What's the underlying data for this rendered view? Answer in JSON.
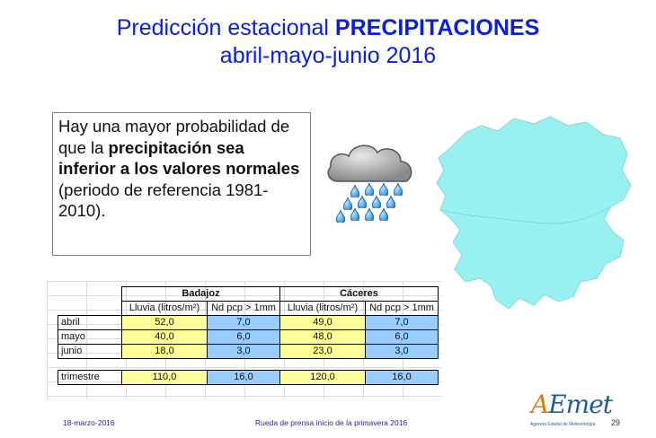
{
  "title": {
    "line1_plain": "Predicción estacional ",
    "line1_bold": "PRECIPITACIONES",
    "line2": "abril-mayo-junio 2016"
  },
  "message": {
    "part1": "Hay una mayor probabilidad de que la ",
    "part2_bold": "precipitación sea inferior a los valores normales",
    "part3": "(periodo de referencia 1981-2010)."
  },
  "icons": {
    "weather": "rain-cloud-icon",
    "map": "region-map"
  },
  "colors": {
    "title": "#0a1fd6",
    "map": "#99f0f0",
    "rain_col": "#ffff99",
    "days_col": "#99ccff"
  },
  "table": {
    "regions": [
      "Badajoz",
      "Cáceres"
    ],
    "subheaders": [
      "Lluvia (litros/m²)",
      "Nd pcp > 1mm",
      "Lluvia (litros/m²)",
      "Nd pcp > 1mm"
    ],
    "rows": [
      {
        "label": "abril",
        "values": [
          "52,0",
          "7,0",
          "49,0",
          "7,0"
        ]
      },
      {
        "label": "mayo",
        "values": [
          "40,0",
          "6,0",
          "48,0",
          "6,0"
        ]
      },
      {
        "label": "junio",
        "values": [
          "18,0",
          "3,0",
          "23,0",
          "3,0"
        ]
      }
    ],
    "total": {
      "label": "trimestre",
      "values": [
        "110,0",
        "16,0",
        "120,0",
        "16,0"
      ]
    }
  },
  "footer": {
    "date": "18-marzo-2016",
    "event": "Rueda de prensa inicio de la primavera 2016",
    "page": "29"
  },
  "logo": {
    "name": "AEmet",
    "subtitle": "Agencia Estatal de Meteorología"
  }
}
